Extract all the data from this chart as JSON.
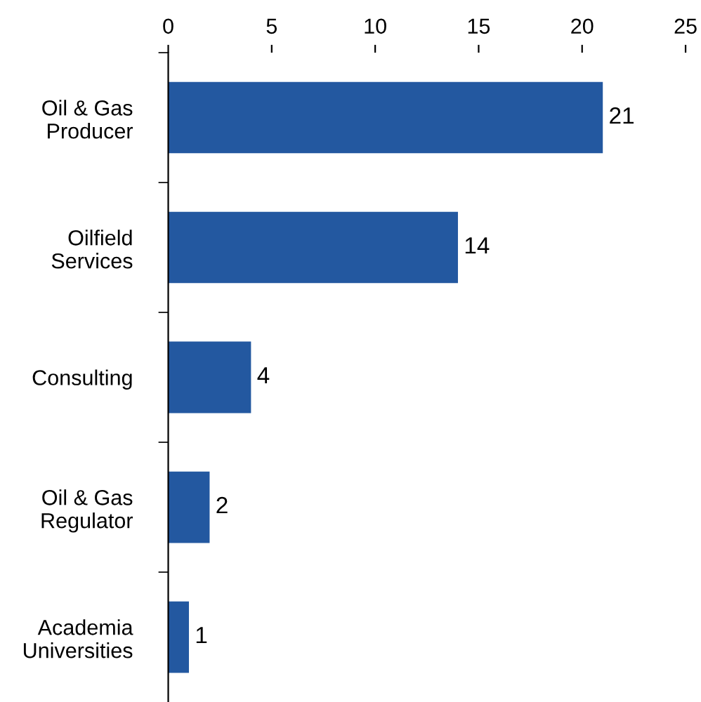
{
  "chart_data": {
    "type": "bar",
    "orientation": "horizontal",
    "categories": [
      "Oil & Gas\nProducer",
      "Oilfield\nServices",
      "Consulting",
      "Oil & Gas\nRegulator",
      "Academia\nUniversities"
    ],
    "values": [
      21,
      14,
      4,
      2,
      1
    ],
    "color": "#2358a0",
    "xlim": [
      0,
      25
    ],
    "xticks": [
      0,
      5,
      10,
      15,
      20,
      25
    ],
    "data_labels": true
  }
}
